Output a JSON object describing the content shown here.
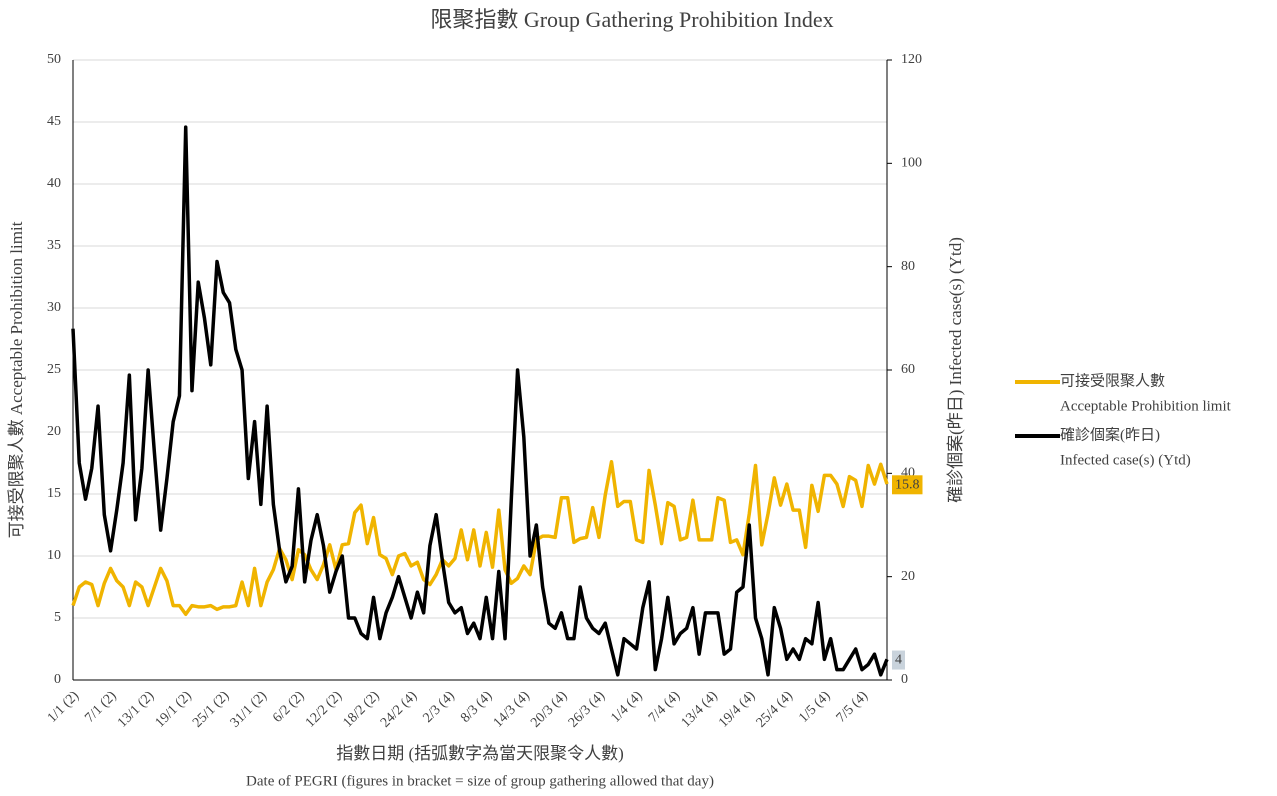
{
  "chart_data": {
    "type": "line",
    "title": "限聚指數 Group Gathering Prohibition Index",
    "x_label": [
      "指數日期 (括弧數字為當天限聚令人數)",
      "Date of PEGRI (figures in bracket = size of group gathering allowed that day)"
    ],
    "y_label": "可接受限聚人數 Acceptable Prohibition limit",
    "y2_label": "確診個案(昨日) Infected case(s) (Ytd)",
    "categories": [
      "1/1 (2)",
      null,
      null,
      null,
      null,
      null,
      "7/1 (2)",
      null,
      null,
      null,
      null,
      null,
      "13/1 (2)",
      null,
      null,
      null,
      null,
      null,
      "19/1 (2)",
      null,
      null,
      null,
      null,
      null,
      "25/1 (2)",
      null,
      null,
      null,
      null,
      null,
      "31/1 (2)",
      null,
      null,
      null,
      null,
      null,
      "6/2 (2)",
      null,
      null,
      null,
      null,
      null,
      "12/2 (2)",
      null,
      null,
      null,
      null,
      null,
      "18/2 (2)",
      null,
      null,
      null,
      null,
      null,
      "24/2 (4)",
      null,
      null,
      null,
      null,
      null,
      "2/3 (4)",
      null,
      null,
      null,
      null,
      null,
      "8/3 (4)",
      null,
      null,
      null,
      null,
      null,
      "14/3 (4)",
      null,
      null,
      null,
      null,
      null,
      "20/3 (4)",
      null,
      null,
      null,
      null,
      null,
      "26/3 (4)",
      null,
      null,
      null,
      null,
      null,
      "1/4 (4)",
      null,
      null,
      null,
      null,
      null,
      "7/4 (4)",
      null,
      null,
      null,
      null,
      null,
      "13/4 (4)",
      null,
      null,
      null,
      null,
      null,
      "19/4 (4)",
      null,
      null,
      null,
      null,
      null,
      "25/4 (4)",
      null,
      null,
      null,
      null,
      null,
      "1/5 (4)",
      null,
      null,
      null,
      null,
      null,
      "7/5 (4)",
      null,
      null,
      null,
      null
    ],
    "series": [
      {
        "name": [
          "可接受限聚人數",
          "Acceptable Prohibition limit"
        ],
        "color": "#f0b400",
        "axis": "y",
        "end_box": "#f0b400",
        "values": [
          6,
          7.5,
          7.9,
          7.7,
          6,
          7.8,
          9,
          8,
          7.5,
          6,
          7.9,
          7.5,
          6,
          7.5,
          9,
          8,
          6,
          6,
          5.3,
          6,
          5.9,
          5.9,
          6,
          5.7,
          5.9,
          5.9,
          6,
          7.9,
          6,
          9,
          6,
          7.9,
          8.9,
          10.6,
          9.7,
          8.1,
          10.5,
          10.1,
          8.9,
          8.1,
          9.3,
          10.9,
          8.9,
          10.9,
          11,
          13.5,
          14.1,
          11,
          13.1,
          10.1,
          9.8,
          8.5,
          10,
          10.2,
          9.2,
          9.5,
          8.1,
          7.7,
          8.5,
          9.7,
          9.2,
          9.8,
          12.1,
          9.7,
          12.1,
          9.2,
          11.9,
          9.1,
          13.7,
          8.9,
          7.8,
          8.2,
          9.2,
          8.5,
          11.3,
          11.6,
          11.6,
          11.5,
          14.7,
          14.7,
          11.1,
          11.4,
          11.5,
          13.9,
          11.5,
          14.9,
          17.6,
          14,
          14.4,
          14.4,
          11.3,
          11.1,
          16.9,
          14.1,
          11,
          14.3,
          14,
          11.3,
          11.5,
          14.5,
          11.3,
          11.3,
          11.3,
          14.7,
          14.5,
          11.1,
          11.3,
          10.1,
          13.4,
          17.3,
          10.9,
          13.4,
          16.3,
          14.1,
          15.8,
          13.7,
          13.7,
          10.7,
          15.7,
          13.6,
          16.5,
          16.5,
          15.8,
          14,
          16.4,
          16.1,
          14,
          17.3,
          15.8,
          17.4,
          15.8
        ]
      },
      {
        "name": [
          "確診個案(昨日)",
          "Infected case(s) (Ytd)"
        ],
        "color": "#000000",
        "axis": "y2",
        "end_box": "#c9d3dc",
        "values": [
          68,
          42,
          35,
          41,
          53,
          32,
          25,
          33,
          42,
          59,
          31,
          41,
          60,
          44,
          29,
          39,
          50,
          55,
          107,
          56,
          77,
          70,
          61,
          81,
          75,
          73,
          64,
          60,
          39,
          50,
          34,
          53,
          34,
          25,
          19,
          22,
          37,
          19,
          27,
          32,
          26,
          17,
          21,
          24,
          12,
          12,
          9,
          8,
          16,
          8,
          13,
          16,
          20,
          16,
          12,
          17,
          13,
          26,
          32,
          23,
          15,
          13,
          14,
          9,
          11,
          8,
          16,
          8,
          21,
          8,
          35,
          60,
          47,
          24,
          30,
          18,
          11,
          10,
          13,
          8,
          8,
          18,
          12,
          10,
          9,
          11,
          6,
          1,
          8,
          7,
          6,
          14,
          19,
          2,
          8,
          16,
          7,
          9,
          10,
          14,
          5,
          13,
          13,
          13,
          5,
          6,
          17,
          18,
          30,
          12,
          8,
          1,
          14,
          10,
          4,
          6,
          4,
          8,
          7,
          15,
          4,
          8,
          2,
          2,
          4,
          6,
          2,
          3,
          5,
          1,
          4
        ]
      }
    ],
    "ylim": [
      0,
      50
    ],
    "yticks": [
      0,
      5,
      10,
      15,
      20,
      25,
      30,
      35,
      40,
      45,
      50
    ],
    "y2lim": [
      0,
      120
    ],
    "y2ticks": [
      0,
      20,
      40,
      60,
      80,
      100,
      120
    ],
    "grid": true,
    "legend": "right"
  }
}
